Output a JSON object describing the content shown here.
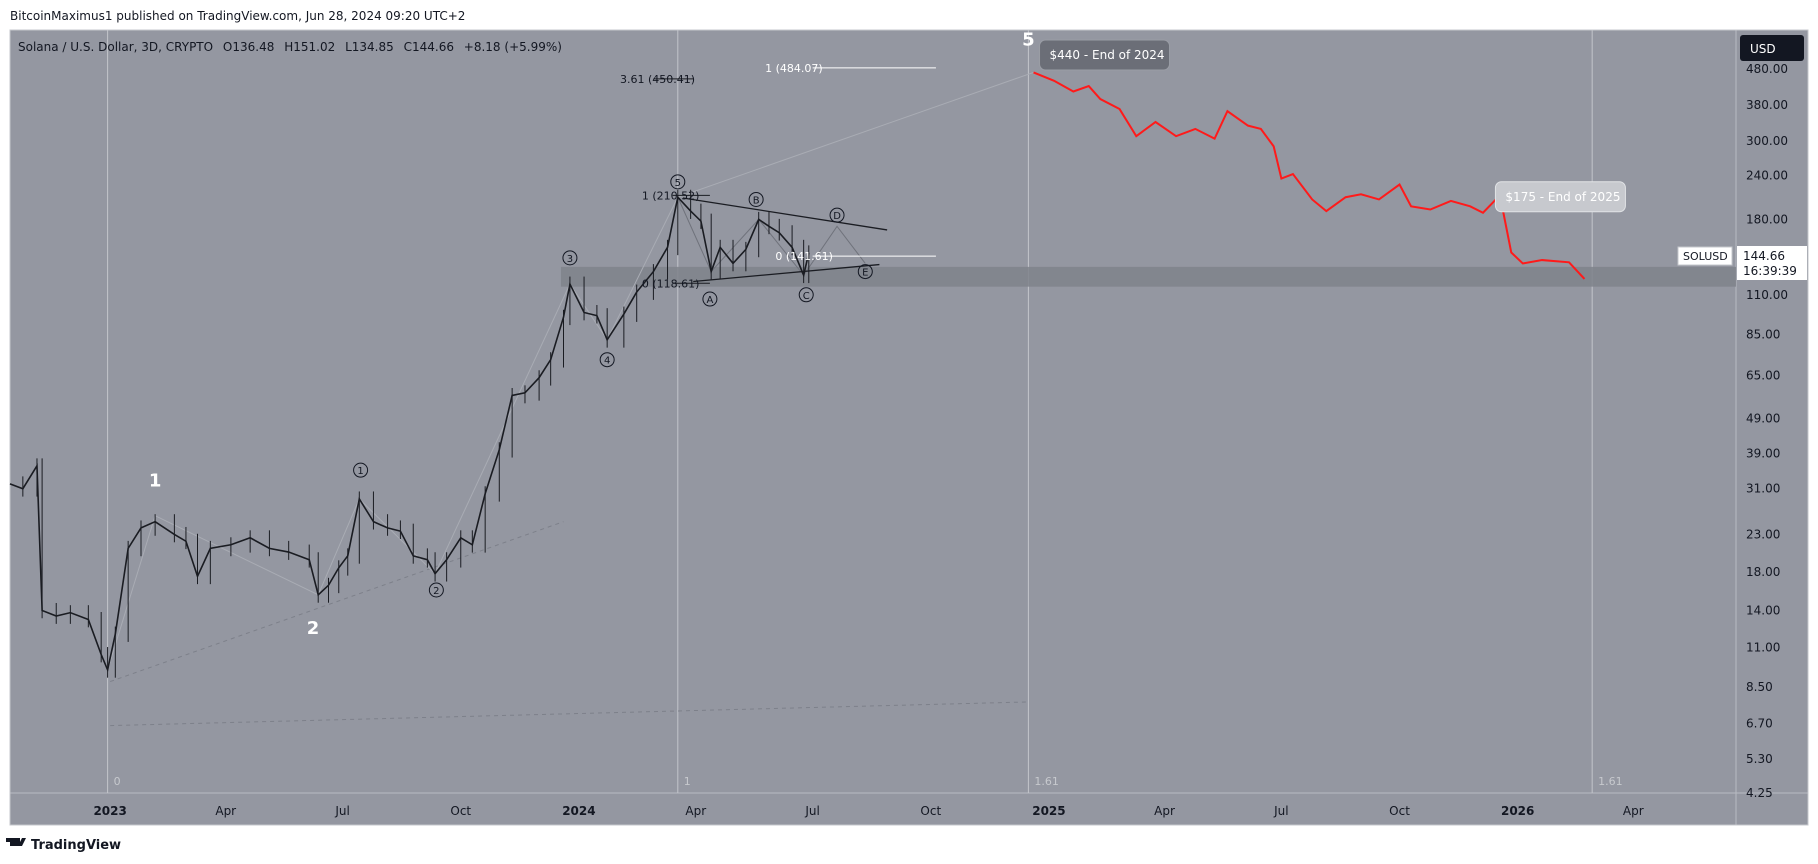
{
  "header": {
    "publisher_line": "BitcoinMaximus1 published on TradingView.com, Jun 28, 2024 09:20 UTC+2"
  },
  "footer": {
    "brand": "TradingView"
  },
  "legend": {
    "symbol": "Solana / U.S. Dollar, 3D, CRYPTO",
    "open_label": "O",
    "open": "136.48",
    "high_label": "H",
    "high": "151.02",
    "low_label": "L",
    "low": "134.85",
    "close_label": "C",
    "close": "144.66",
    "change": "+8.18 (+5.99%)"
  },
  "price_axis": {
    "currency_button": "USD",
    "symbol_tag": "SOLUSD",
    "last_price": "144.66",
    "countdown": "16:39:39"
  },
  "colors": {
    "plot_bg": "#9497a1",
    "projection": "#ff1a1a",
    "zone": "#7f828b",
    "last_price_tag": "#ffffff"
  },
  "chart_data": {
    "type": "line",
    "scale": "log",
    "ylim": [
      4.25,
      620
    ],
    "xlim": [
      "2022-10-15",
      "2026-06-20"
    ],
    "y_ticks": [
      "480.00",
      "380.00",
      "300.00",
      "240.00",
      "180.00",
      "144.66",
      "110.00",
      "85.00",
      "65.00",
      "49.00",
      "39.00",
      "31.00",
      "23.00",
      "18.00",
      "14.00",
      "11.00",
      "8.50",
      "6.70",
      "5.30",
      "4.25"
    ],
    "x_ticks": [
      {
        "label": "2023",
        "date": "2023-01-01",
        "bold": true
      },
      {
        "label": "Apr",
        "date": "2023-04-01"
      },
      {
        "label": "Jul",
        "date": "2023-07-01"
      },
      {
        "label": "Oct",
        "date": "2023-10-01"
      },
      {
        "label": "2024",
        "date": "2024-01-01",
        "bold": true
      },
      {
        "label": "Apr",
        "date": "2024-04-01"
      },
      {
        "label": "Jul",
        "date": "2024-07-01"
      },
      {
        "label": "Oct",
        "date": "2024-10-01"
      },
      {
        "label": "2025",
        "date": "2025-01-01",
        "bold": true
      },
      {
        "label": "Apr",
        "date": "2025-04-01"
      },
      {
        "label": "Jul",
        "date": "2025-07-01"
      },
      {
        "label": "Oct",
        "date": "2025-10-01"
      },
      {
        "label": "2026",
        "date": "2026-01-01",
        "bold": true
      },
      {
        "label": "Apr",
        "date": "2026-04-01"
      }
    ],
    "price_series": {
      "name": "SOLUSD",
      "points": [
        [
          "2022-10-15",
          32
        ],
        [
          "2022-10-25",
          31
        ],
        [
          "2022-11-05",
          36
        ],
        [
          "2022-11-09",
          14
        ],
        [
          "2022-11-20",
          13.5
        ],
        [
          "2022-12-01",
          13.8
        ],
        [
          "2022-12-15",
          13.2
        ],
        [
          "2022-12-25",
          10.5
        ],
        [
          "2022-12-30",
          9.5
        ],
        [
          "2023-01-05",
          12
        ],
        [
          "2023-01-15",
          21
        ],
        [
          "2023-01-25",
          24
        ],
        [
          "2023-02-05",
          25
        ],
        [
          "2023-02-20",
          23
        ],
        [
          "2023-03-01",
          22
        ],
        [
          "2023-03-10",
          17.5
        ],
        [
          "2023-03-20",
          21
        ],
        [
          "2023-04-05",
          21.5
        ],
        [
          "2023-04-20",
          22.5
        ],
        [
          "2023-05-05",
          21
        ],
        [
          "2023-05-20",
          20.5
        ],
        [
          "2023-06-05",
          19.5
        ],
        [
          "2023-06-12",
          15.5
        ],
        [
          "2023-06-20",
          16.5
        ],
        [
          "2023-06-28",
          18.5
        ],
        [
          "2023-07-05",
          20
        ],
        [
          "2023-07-14",
          29
        ],
        [
          "2023-07-25",
          25
        ],
        [
          "2023-08-05",
          24
        ],
        [
          "2023-08-15",
          23.5
        ],
        [
          "2023-08-25",
          20
        ],
        [
          "2023-09-05",
          19.5
        ],
        [
          "2023-09-11",
          17.8
        ],
        [
          "2023-09-20",
          19.5
        ],
        [
          "2023-10-01",
          22.5
        ],
        [
          "2023-10-10",
          21.5
        ],
        [
          "2023-10-20",
          30
        ],
        [
          "2023-10-31",
          40
        ],
        [
          "2023-11-10",
          57
        ],
        [
          "2023-11-20",
          58
        ],
        [
          "2023-12-01",
          64
        ],
        [
          "2023-12-10",
          72
        ],
        [
          "2023-12-20",
          95
        ],
        [
          "2023-12-25",
          118
        ],
        [
          "2024-01-05",
          98
        ],
        [
          "2024-01-15",
          96
        ],
        [
          "2024-01-23",
          82
        ],
        [
          "2024-02-05",
          97
        ],
        [
          "2024-02-15",
          112
        ],
        [
          "2024-02-28",
          128
        ],
        [
          "2024-03-10",
          150
        ],
        [
          "2024-03-18",
          208
        ],
        [
          "2024-03-28",
          190
        ],
        [
          "2024-04-05",
          178
        ],
        [
          "2024-04-13",
          128
        ],
        [
          "2024-04-20",
          150
        ],
        [
          "2024-04-30",
          135
        ],
        [
          "2024-05-10",
          148
        ],
        [
          "2024-05-20",
          180
        ],
        [
          "2024-05-28",
          172
        ],
        [
          "2024-06-05",
          165
        ],
        [
          "2024-06-15",
          150
        ],
        [
          "2024-06-24",
          125
        ],
        [
          "2024-06-28",
          144.66
        ]
      ]
    },
    "projection_series": {
      "points": [
        [
          "2024-12-20",
          470
        ],
        [
          "2025-01-05",
          445
        ],
        [
          "2025-01-20",
          415
        ],
        [
          "2025-02-01",
          430
        ],
        [
          "2025-02-10",
          395
        ],
        [
          "2025-02-25",
          370
        ],
        [
          "2025-03-10",
          310
        ],
        [
          "2025-03-25",
          340
        ],
        [
          "2025-04-10",
          310
        ],
        [
          "2025-04-25",
          325
        ],
        [
          "2025-05-10",
          305
        ],
        [
          "2025-05-20",
          365
        ],
        [
          "2025-06-05",
          332
        ],
        [
          "2025-06-15",
          325
        ],
        [
          "2025-06-25",
          290
        ],
        [
          "2025-07-01",
          235
        ],
        [
          "2025-07-10",
          242
        ],
        [
          "2025-07-25",
          205
        ],
        [
          "2025-08-05",
          190
        ],
        [
          "2025-08-20",
          208
        ],
        [
          "2025-09-01",
          212
        ],
        [
          "2025-09-15",
          205
        ],
        [
          "2025-10-01",
          226
        ],
        [
          "2025-10-10",
          196
        ],
        [
          "2025-10-25",
          192
        ],
        [
          "2025-11-10",
          203
        ],
        [
          "2025-11-25",
          196
        ],
        [
          "2025-12-05",
          188
        ],
        [
          "2025-12-15",
          205
        ],
        [
          "2025-12-20",
          195
        ],
        [
          "2025-12-27",
          145
        ],
        [
          "2026-01-05",
          135
        ],
        [
          "2026-01-20",
          138
        ],
        [
          "2026-02-10",
          136
        ],
        [
          "2026-02-22",
          122
        ]
      ]
    },
    "zone": {
      "from": "2023-12-18",
      "to": "2026-06-20",
      "y_low": 116,
      "y_high": 132
    },
    "elliott_big": [
      {
        "label": "1",
        "date": "2023-02-05",
        "y": 31.5
      },
      {
        "label": "2",
        "date": "2023-06-08",
        "y": 12.0
      },
      {
        "label": "5",
        "date": "2024-12-16",
        "y": 560
      }
    ],
    "elliott_small": [
      {
        "label": "1",
        "date": "2023-07-15",
        "y": 35
      },
      {
        "label": "2",
        "date": "2023-09-12",
        "y": 16
      },
      {
        "label": "3",
        "date": "2023-12-25",
        "y": 140
      },
      {
        "label": "4",
        "date": "2024-01-23",
        "y": 72
      },
      {
        "label": "5",
        "date": "2024-03-18",
        "y": 230
      }
    ],
    "abc_labels": [
      {
        "label": "A",
        "date": "2024-04-12",
        "y": 107
      },
      {
        "label": "B",
        "date": "2024-05-18",
        "y": 205
      },
      {
        "label": "C",
        "date": "2024-06-26",
        "y": 110
      },
      {
        "label": "D",
        "date": "2024-07-20",
        "y": 185
      },
      {
        "label": "E",
        "date": "2024-08-11",
        "y": 128
      }
    ],
    "fib_levels": [
      {
        "label": "3.61 (450.41)",
        "y": 450.41,
        "from": "2024-02-28",
        "to": "2024-03-30",
        "label_date": "2024-02-02"
      },
      {
        "label": "1 (484.07)",
        "y": 484.07,
        "from": "2024-07-01",
        "to": "2024-10-05",
        "label_date": "2024-05-25"
      },
      {
        "label": "1 (210.52)",
        "y": 210.52,
        "from": "2024-03-14",
        "to": "2024-04-12",
        "label_date": "2024-02-19"
      },
      {
        "label": "0 (141.61)",
        "y": 141.61,
        "from": "2024-07-01",
        "to": "2024-10-05",
        "label_date": "2024-06-02"
      },
      {
        "label": "0 (118.61)",
        "y": 118.61,
        "from": "2024-03-14",
        "to": "2024-04-12",
        "label_date": "2024-02-19"
      }
    ],
    "triangle": {
      "upper": [
        [
          "2024-03-22",
          207
        ],
        [
          "2024-08-28",
          168
        ]
      ],
      "lower": [
        [
          "2024-03-30",
          120
        ],
        [
          "2024-08-22",
          134
        ]
      ]
    },
    "vertical_lines": [
      {
        "date": "2022-12-30",
        "label": "0"
      },
      {
        "date": "2024-03-18",
        "label": "1"
      },
      {
        "date": "2024-12-16",
        "label": "1.61"
      },
      {
        "date": "2026-02-28",
        "label": "1.61"
      }
    ],
    "annotations": [
      {
        "text": "$440 - End of 2024",
        "date": "2024-12-20",
        "y": 530,
        "style": "dark"
      },
      {
        "text": "$175 - End of 2025",
        "date": "2025-12-10",
        "y": 210,
        "style": "light"
      }
    ]
  }
}
